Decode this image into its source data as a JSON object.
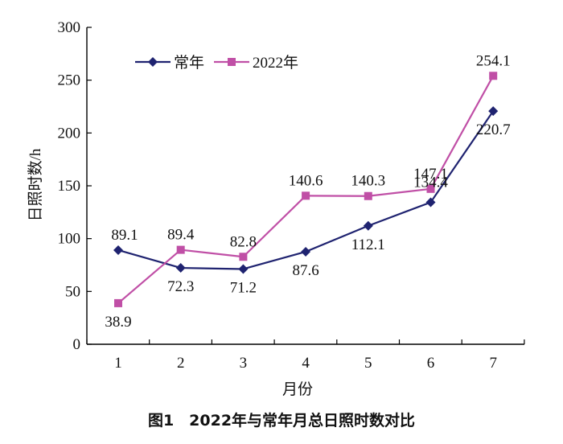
{
  "chart_data": {
    "type": "line",
    "categories": [
      "1",
      "2",
      "3",
      "4",
      "5",
      "6",
      "7"
    ],
    "series": [
      {
        "name": "常年",
        "values": [
          89.1,
          72.3,
          71.2,
          87.6,
          112.1,
          134.4,
          220.7
        ],
        "color": "#1f2370",
        "marker": "diamond"
      },
      {
        "name": "2022年",
        "values": [
          38.9,
          89.4,
          82.8,
          140.6,
          140.3,
          147.1,
          254.1
        ],
        "color": "#c04fa6",
        "marker": "square"
      }
    ],
    "xlabel": "月份",
    "ylabel": "日照时数/h",
    "ylim": [
      0,
      300
    ],
    "yticks": [
      "0",
      "50",
      "100",
      "150",
      "200",
      "250",
      "300"
    ],
    "grid": false,
    "legend_position": "top-left"
  },
  "caption": "图1　2022年与常年月总日照时数对比"
}
